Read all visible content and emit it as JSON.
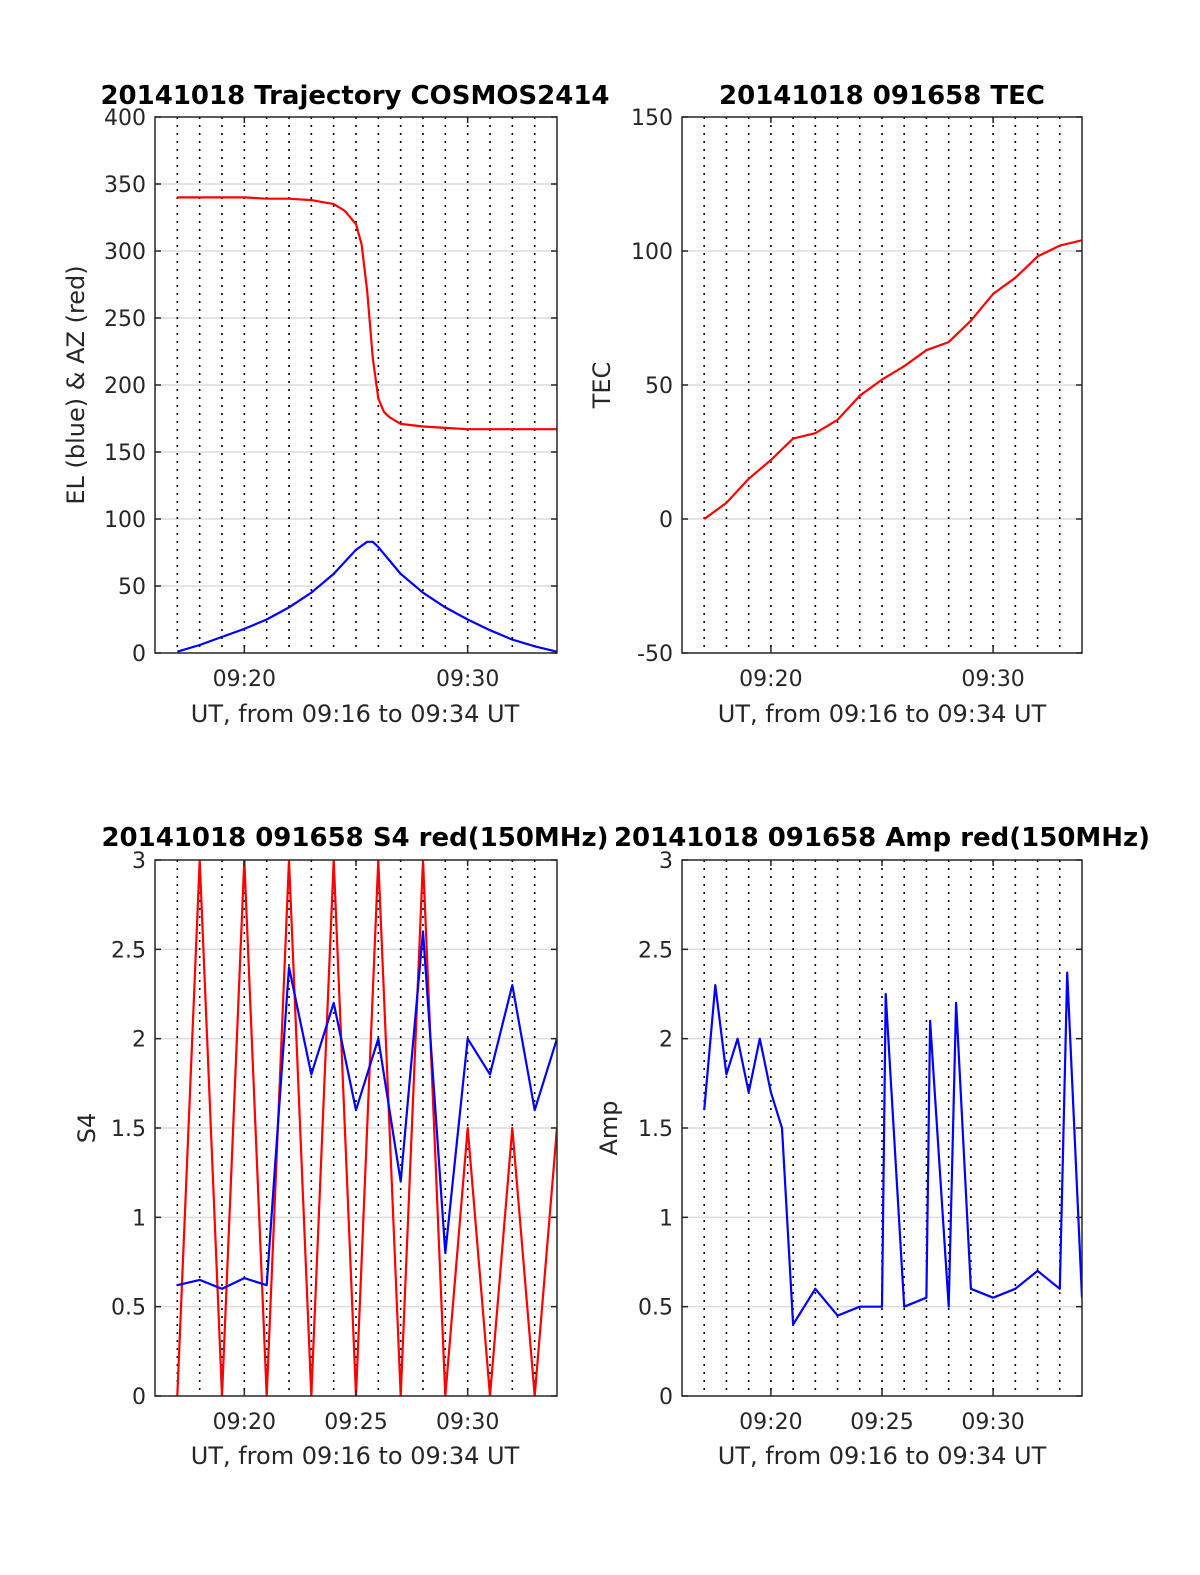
{
  "figure": {
    "background": "#ffffff"
  },
  "chart_data": [
    {
      "id": "trajectory",
      "type": "line",
      "title": "20141018 Trajectory COSMOS2414",
      "xlabel": "UT, from 09:16 to 09:34 UT",
      "ylabel": "EL (blue) & AZ (red)",
      "xlim": [
        "09:16",
        "09:34"
      ],
      "x_ticks": [
        "09:20",
        "09:30"
      ],
      "ylim": [
        0,
        400
      ],
      "y_ticks": [
        0,
        50,
        100,
        150,
        200,
        250,
        300,
        350,
        400
      ],
      "grid": true,
      "legend": "none",
      "series": [
        {
          "color": "#ff0000",
          "x": [
            "09:17",
            "09:18",
            "09:19",
            "09:20",
            "09:21",
            "09:22",
            "09:23",
            "09:24",
            "09:24:30",
            "09:25",
            "09:25:15",
            "09:25:30",
            "09:25:45",
            "09:26",
            "09:26:15",
            "09:26:30",
            "09:27",
            "09:28",
            "09:29",
            "09:30",
            "09:32",
            "09:34"
          ],
          "values": [
            340,
            340,
            340,
            340,
            339,
            339,
            338,
            335,
            330,
            320,
            305,
            270,
            220,
            190,
            180,
            176,
            171,
            169,
            168,
            167,
            167,
            167
          ]
        },
        {
          "color": "#0000ff",
          "x": [
            "09:17",
            "09:18",
            "09:19",
            "09:20",
            "09:21",
            "09:22",
            "09:23",
            "09:24",
            "09:24:30",
            "09:25",
            "09:25:30",
            "09:25:45",
            "09:26",
            "09:26:30",
            "09:27",
            "09:28",
            "09:29",
            "09:30",
            "09:31",
            "09:32",
            "09:33",
            "09:34"
          ],
          "values": [
            1,
            6,
            12,
            18,
            25,
            34,
            45,
            59,
            68,
            77,
            83,
            83,
            79,
            69,
            59,
            45,
            34,
            25,
            17,
            10,
            5,
            1
          ]
        }
      ]
    },
    {
      "id": "tec",
      "type": "line",
      "title": "20141018 091658 TEC",
      "xlabel": "UT, from 09:16 to 09:34 UT",
      "ylabel": "TEC",
      "xlim": [
        "09:16",
        "09:34"
      ],
      "x_ticks": [
        "09:20",
        "09:30"
      ],
      "ylim": [
        -50,
        150
      ],
      "y_ticks": [
        -50,
        0,
        50,
        100,
        150
      ],
      "grid": true,
      "legend": "none",
      "series": [
        {
          "color": "#ff0000",
          "x": [
            "09:17",
            "09:18",
            "09:19",
            "09:20",
            "09:21",
            "09:22",
            "09:23",
            "09:24",
            "09:25",
            "09:26",
            "09:27",
            "09:28",
            "09:29",
            "09:30",
            "09:31",
            "09:32",
            "09:33",
            "09:34"
          ],
          "values": [
            0,
            6,
            15,
            22,
            30,
            32,
            37,
            46,
            52,
            57,
            63,
            66,
            74,
            84,
            90,
            98,
            102,
            104
          ]
        }
      ]
    },
    {
      "id": "s4",
      "type": "line",
      "title": "20141018 091658 S4 red(150MHz)",
      "xlabel": "UT, from 09:16 to 09:34 UT",
      "ylabel": "S4",
      "xlim": [
        "09:16",
        "09:34"
      ],
      "x_ticks": [
        "09:20",
        "09:25",
        "09:30"
      ],
      "ylim": [
        0,
        3
      ],
      "y_ticks": [
        0,
        0.5,
        1,
        1.5,
        2,
        2.5,
        3
      ],
      "grid": true,
      "legend": "none",
      "series": [
        {
          "color": "#ff0000",
          "x": [
            "09:17",
            "09:18",
            "09:19",
            "09:20",
            "09:21",
            "09:22",
            "09:23",
            "09:24",
            "09:25",
            "09:26",
            "09:27",
            "09:28",
            "09:29",
            "09:30",
            "09:31",
            "09:32",
            "09:33",
            "09:34"
          ],
          "values": [
            0,
            3,
            0,
            3,
            0,
            3,
            0,
            3,
            0,
            3,
            0,
            3,
            0,
            1.5,
            0,
            1.5,
            0,
            1.5
          ]
        },
        {
          "color": "#0000ff",
          "x": [
            "09:17",
            "09:18",
            "09:19",
            "09:20",
            "09:21",
            "09:22",
            "09:23",
            "09:24",
            "09:25",
            "09:26",
            "09:27",
            "09:28",
            "09:29",
            "09:30",
            "09:31",
            "09:32",
            "09:33",
            "09:34"
          ],
          "values": [
            0.62,
            0.65,
            0.6,
            0.66,
            0.62,
            2.4,
            1.8,
            2.2,
            1.6,
            2.0,
            1.2,
            2.6,
            0.8,
            2.0,
            1.8,
            2.3,
            1.6,
            2.0
          ]
        }
      ]
    },
    {
      "id": "amp",
      "type": "line",
      "title": "20141018 091658 Amp red(150MHz)",
      "xlabel": "UT, from 09:16 to 09:34 UT",
      "ylabel": "Amp",
      "xlim": [
        "09:16",
        "09:34"
      ],
      "x_ticks": [
        "09:20",
        "09:25",
        "09:30"
      ],
      "ylim": [
        0,
        3
      ],
      "y_ticks": [
        0,
        0.5,
        1,
        1.5,
        2,
        2.5,
        3
      ],
      "grid": true,
      "legend": "none",
      "series": [
        {
          "color": "#0000ff",
          "x": [
            "09:17",
            "09:17:30",
            "09:18",
            "09:18:30",
            "09:19",
            "09:19:30",
            "09:20",
            "09:20:30",
            "09:21",
            "09:22",
            "09:23",
            "09:24",
            "09:25",
            "09:25:10",
            "09:26",
            "09:27",
            "09:27:10",
            "09:28",
            "09:28:20",
            "09:29",
            "09:30",
            "09:31",
            "09:32",
            "09:33",
            "09:33:20",
            "09:34"
          ],
          "values": [
            1.6,
            2.3,
            1.8,
            2.0,
            1.7,
            2.0,
            1.7,
            1.5,
            0.4,
            0.6,
            0.45,
            0.5,
            0.5,
            2.25,
            0.5,
            0.55,
            2.1,
            0.5,
            2.2,
            0.6,
            0.55,
            0.6,
            0.7,
            0.6,
            2.37,
            0.55
          ]
        }
      ]
    }
  ]
}
